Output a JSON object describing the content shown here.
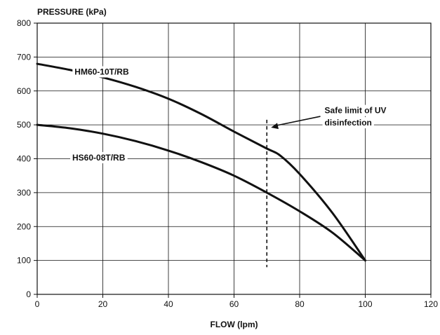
{
  "chart_data": {
    "type": "line",
    "title": "",
    "xlabel": "FLOW (lpm)",
    "ylabel": "PRESSURE (kPa)",
    "xlim": [
      0,
      120
    ],
    "ylim": [
      0,
      800
    ],
    "x_ticks": [
      0,
      20,
      40,
      60,
      80,
      100,
      120
    ],
    "y_ticks": [
      0,
      100,
      200,
      300,
      400,
      500,
      600,
      700,
      800
    ],
    "grid": true,
    "legend": "none",
    "series": [
      {
        "name": "HM60-10T/RB",
        "x": [
          0,
          10,
          20,
          30,
          40,
          50,
          60,
          70,
          74,
          80,
          90,
          100
        ],
        "y": [
          680,
          662,
          640,
          612,
          577,
          532,
          480,
          430,
          410,
          355,
          240,
          100
        ]
      },
      {
        "name": "HS60-08T/RB",
        "x": [
          0,
          10,
          20,
          30,
          40,
          50,
          60,
          70,
          80,
          90,
          100
        ],
        "y": [
          500,
          490,
          474,
          452,
          424,
          390,
          350,
          300,
          245,
          182,
          100
        ]
      }
    ],
    "annotations": [
      {
        "text_lines": [
          "Safe limit of UV",
          "disinfection"
        ],
        "vline_x": 70,
        "vline_y_range": [
          80,
          515
        ]
      }
    ],
    "colors": {
      "line": "#111111",
      "grid": "#111111",
      "background": "#ffffff"
    }
  }
}
